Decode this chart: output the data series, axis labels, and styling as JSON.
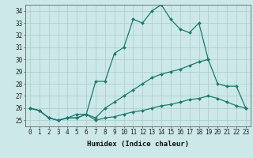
{
  "xlabel": "Humidex (Indice chaleur)",
  "x": [
    0,
    1,
    2,
    3,
    4,
    5,
    6,
    7,
    8,
    9,
    10,
    11,
    12,
    13,
    14,
    15,
    16,
    17,
    18,
    19,
    20,
    21,
    22,
    23
  ],
  "line1": [
    26.0,
    25.8,
    25.2,
    25.0,
    25.2,
    25.2,
    25.5,
    25.0,
    25.2,
    25.3,
    25.5,
    25.7,
    25.8,
    26.0,
    26.2,
    26.3,
    26.5,
    26.7,
    26.8,
    27.0,
    26.8,
    26.5,
    26.2,
    26.0
  ],
  "line2": [
    26.0,
    25.8,
    25.2,
    25.0,
    25.2,
    25.2,
    25.5,
    25.2,
    26.0,
    26.5,
    27.0,
    27.5,
    28.0,
    28.5,
    28.8,
    29.0,
    29.2,
    29.5,
    29.8,
    30.0,
    28.0,
    27.8,
    27.8,
    26.0
  ],
  "line3": [
    26.0,
    25.8,
    25.2,
    25.0,
    25.2,
    25.5,
    25.5,
    28.2,
    28.2,
    30.5,
    31.0,
    33.3,
    33.0,
    34.0,
    34.5,
    33.3,
    32.5,
    32.2,
    33.0,
    30.0,
    null,
    null,
    null,
    null
  ],
  "ylim": [
    24.5,
    34.5
  ],
  "yticks": [
    25,
    26,
    27,
    28,
    29,
    30,
    31,
    32,
    33,
    34
  ],
  "xlim": [
    -0.5,
    23.5
  ],
  "xticks": [
    0,
    1,
    2,
    3,
    4,
    5,
    6,
    7,
    8,
    9,
    10,
    11,
    12,
    13,
    14,
    15,
    16,
    17,
    18,
    19,
    20,
    21,
    22,
    23
  ],
  "line_color": "#1a7a6e",
  "bg_color": "#cce8e8",
  "grid_color": "#aacccc",
  "tick_fontsize": 5.5,
  "label_fontsize": 6.5,
  "linewidth": 0.9,
  "markersize": 2.0
}
